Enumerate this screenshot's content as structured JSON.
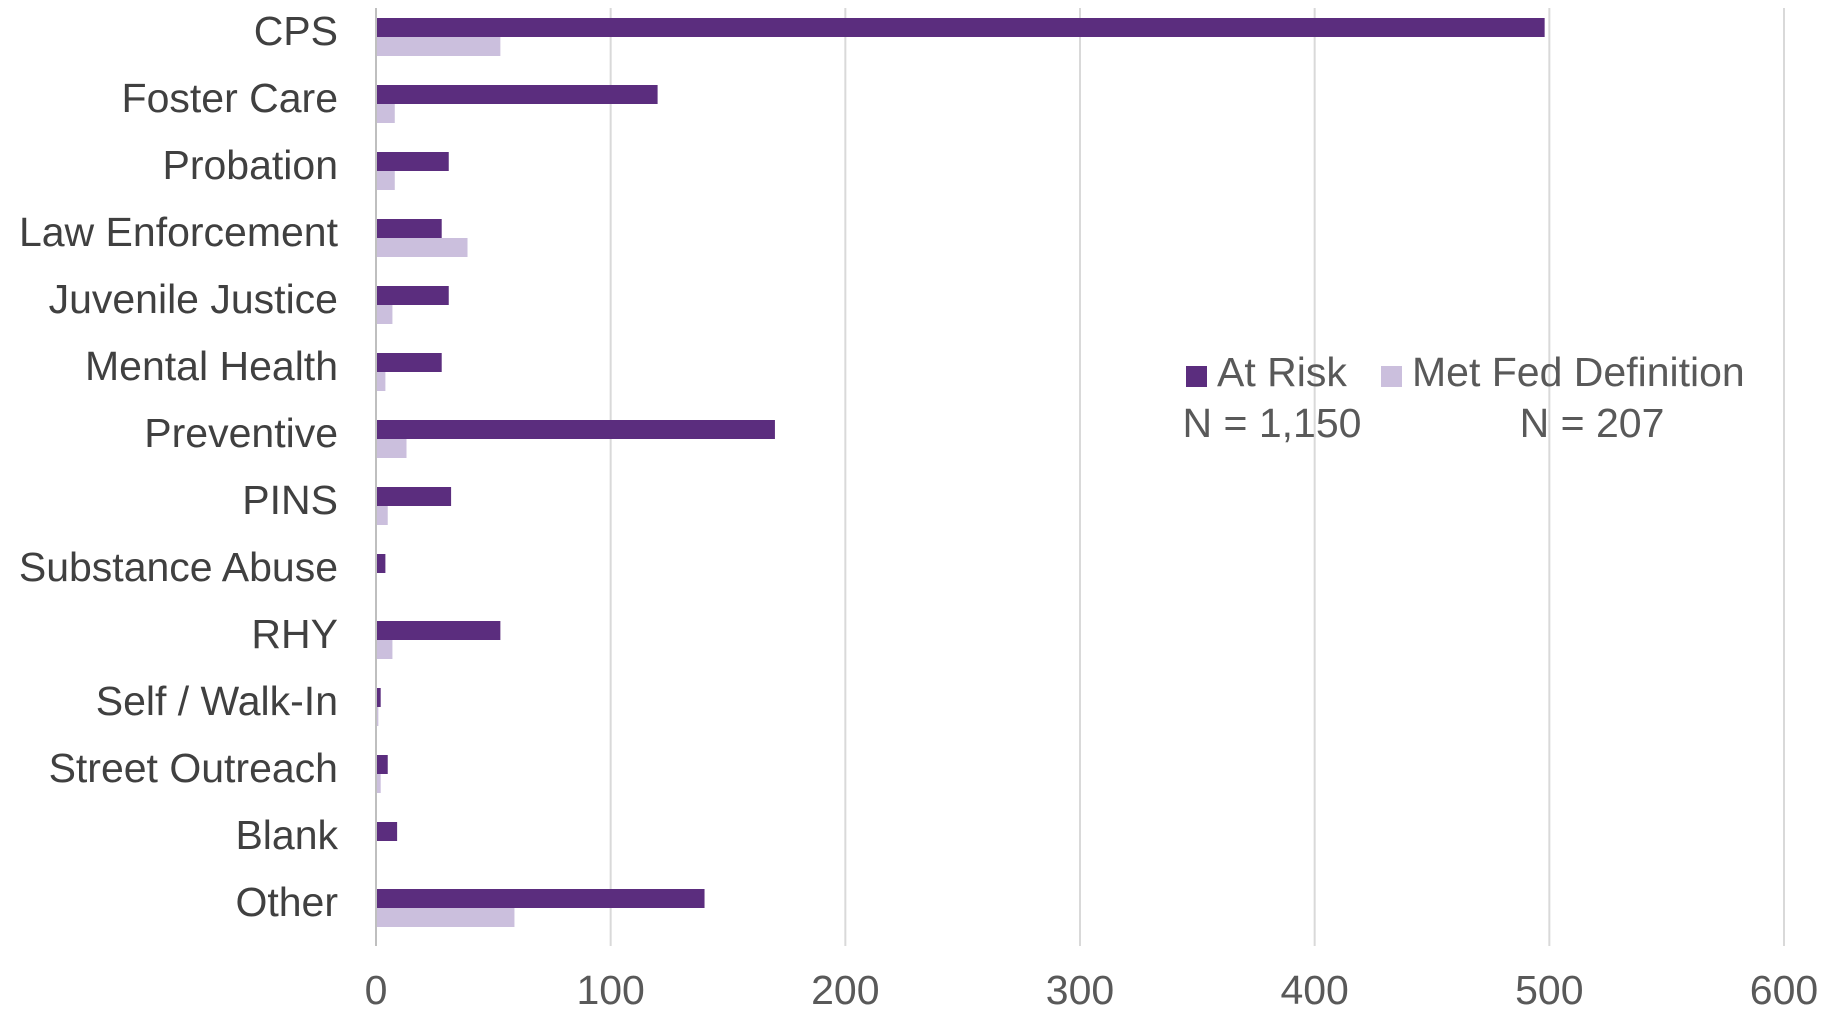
{
  "chart_data": {
    "type": "bar",
    "orientation": "horizontal",
    "categories": [
      "CPS",
      "Foster Care",
      "Probation",
      "Law Enforcement",
      "Juvenile Justice",
      "Mental Health",
      "Preventive",
      "PINS",
      "Substance Abuse",
      "RHY",
      "Self / Walk-In",
      "Street Outreach",
      "Blank",
      "Other"
    ],
    "series": [
      {
        "name": "At Risk",
        "color": "#5b2d7e",
        "values": [
          498,
          120,
          31,
          28,
          31,
          28,
          170,
          32,
          4,
          53,
          2,
          5,
          9,
          140
        ]
      },
      {
        "name": "Met Fed Definition",
        "color": "#cbbfdd",
        "values": [
          53,
          8,
          8,
          39,
          7,
          4,
          13,
          5,
          0,
          7,
          1,
          2,
          0,
          59
        ]
      }
    ],
    "legend_notes": [
      "N = 1,150",
      "N = 207"
    ],
    "xlim": [
      0,
      600
    ],
    "xticks": [
      0,
      100,
      200,
      300,
      400,
      500,
      600
    ],
    "grid": "vertical",
    "legend_position": "right"
  }
}
